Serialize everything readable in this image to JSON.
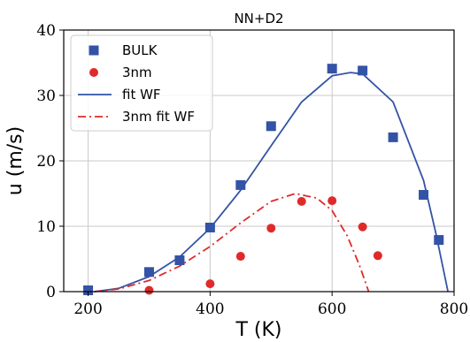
{
  "chart_data": {
    "type": "scatter",
    "title": "NN+D2",
    "xlabel": "T (K)",
    "ylabel": "u (m/s)",
    "xlim": [
      160,
      800
    ],
    "ylim": [
      0,
      40
    ],
    "xticks": [
      200,
      400,
      600,
      800
    ],
    "yticks": [
      0,
      10,
      20,
      30,
      40
    ],
    "x_tick_labels": [
      "200",
      "400",
      "600",
      "800"
    ],
    "y_tick_labels": [
      "0",
      "10",
      "20",
      "30",
      "40"
    ],
    "grid": true,
    "legend_position": "top-left",
    "series": [
      {
        "name": "BULK",
        "kind": "scatter",
        "marker": "square",
        "color": "#3353a6",
        "x": [
          200,
          300,
          350,
          400,
          450,
          500,
          600,
          650,
          700,
          750,
          775
        ],
        "y": [
          0.2,
          3.0,
          4.8,
          9.8,
          16.3,
          25.3,
          34.1,
          33.8,
          23.6,
          14.8,
          7.9
        ]
      },
      {
        "name": "3nm",
        "kind": "scatter",
        "marker": "circle",
        "color": "#e02a2a",
        "x": [
          300,
          400,
          450,
          500,
          550,
          600,
          650,
          675
        ],
        "y": [
          0.2,
          1.2,
          5.4,
          9.7,
          13.8,
          13.9,
          9.9,
          5.5
        ]
      },
      {
        "name": "fit WF",
        "kind": "line",
        "linestyle": "solid",
        "color": "#3353a6",
        "x": [
          210,
          250,
          300,
          350,
          400,
          450,
          500,
          550,
          600,
          630,
          650,
          700,
          750,
          770,
          790
        ],
        "y": [
          0,
          0.5,
          2.3,
          5.3,
          9.7,
          15.5,
          22.3,
          29.0,
          33.0,
          33.5,
          33.3,
          29.0,
          17.0,
          9.0,
          0
        ]
      },
      {
        "name": "3nm fit WF",
        "kind": "line",
        "linestyle": "dashdot",
        "color": "#e02a2a",
        "x": [
          210,
          250,
          300,
          350,
          400,
          450,
          500,
          540,
          575,
          600,
          625,
          645,
          660
        ],
        "y": [
          0,
          0.4,
          1.7,
          3.9,
          6.9,
          10.5,
          13.8,
          15.0,
          14.3,
          12.4,
          8.5,
          4.0,
          0
        ]
      }
    ]
  }
}
